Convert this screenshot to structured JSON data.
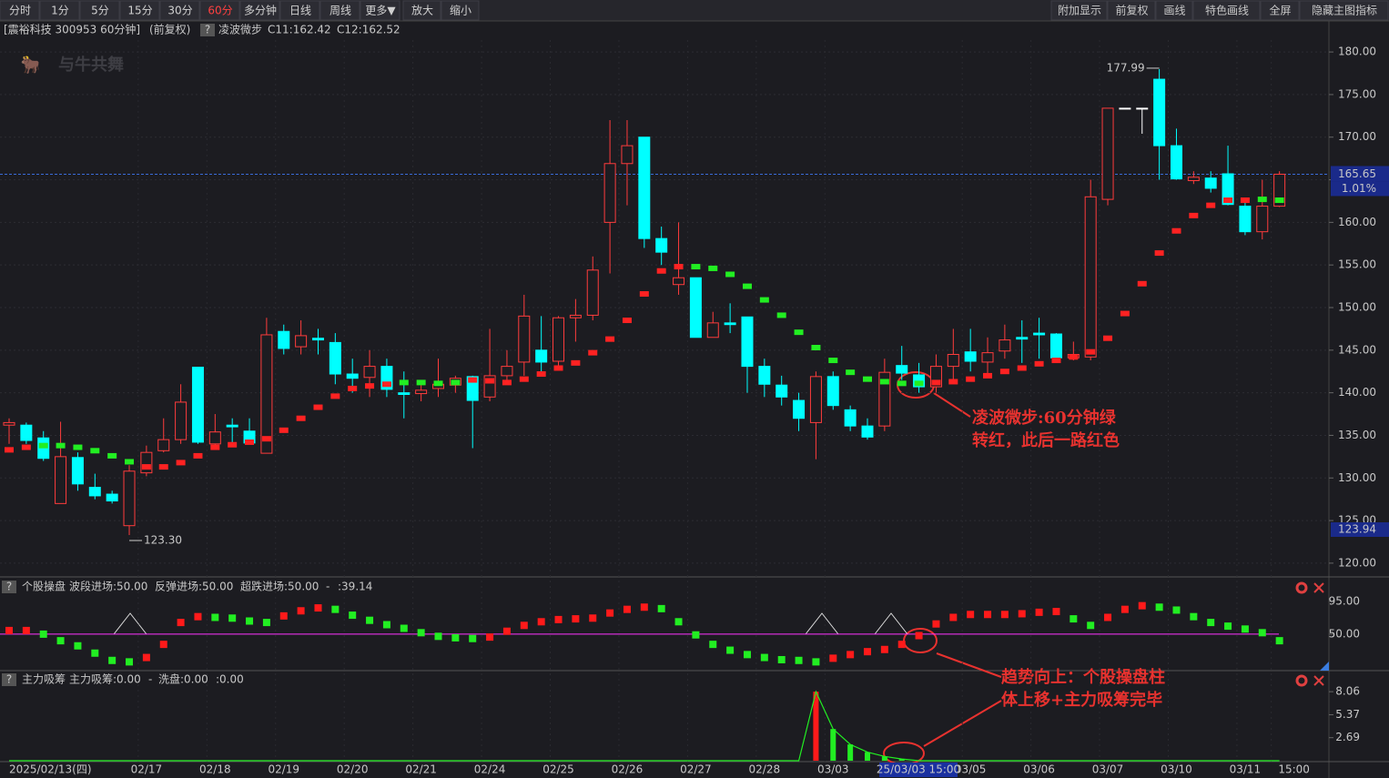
{
  "toolbar": {
    "left": [
      "分时",
      "1分",
      "5分",
      "15分",
      "30分",
      "60分",
      "多分钟",
      "日线",
      "周线",
      "更多▼",
      "放大",
      "缩小"
    ],
    "active": "60分",
    "right": [
      "附加显示",
      "前复权",
      "画线",
      "特色画线",
      "全屏",
      "隐藏主图指标"
    ]
  },
  "watermark": "与牛共舞",
  "chart_data": [
    {
      "type": "candlestick",
      "title": "[震裕科技 300953 60分钟]",
      "subtitle": "(前复权)",
      "help": "?",
      "indicator_values": [
        "C11:162.42",
        "C12:162.52"
      ],
      "categories": [
        "2025/02/13(四)",
        null,
        null,
        null,
        null,
        null,
        null,
        null,
        "02/17",
        null,
        null,
        null,
        "02/18",
        null,
        null,
        null,
        "02/19",
        null,
        null,
        null,
        "02/20",
        null,
        null,
        null,
        "02/21",
        null,
        null,
        null,
        "02/24",
        null,
        null,
        null,
        "02/25",
        null,
        null,
        null,
        "02/26",
        null,
        null,
        null,
        "02/27",
        null,
        null,
        null,
        "02/28",
        null,
        null,
        null,
        "03/03",
        null,
        null,
        null,
        null,
        null,
        null,
        null,
        "03/05",
        null,
        null,
        null,
        "03/06",
        null,
        null,
        null,
        "03/07",
        null,
        null,
        null,
        "03/10",
        null,
        null,
        null,
        "03/11",
        null,
        "15:00"
      ],
      "cursor_label": "25/03/03 15:00",
      "open": [
        136.2,
        136.2,
        134.7,
        127,
        132.4,
        128.9,
        128.1,
        124.4,
        130.6,
        133.2,
        134.5,
        143,
        134,
        136.2,
        135.5,
        132.9,
        147.2,
        145.4,
        146.4,
        145.9,
        142.2,
        141.8,
        143.1,
        140,
        139.9,
        140.5,
        140.9,
        141.9,
        139.5,
        142,
        143.6,
        145,
        143.7,
        148.8,
        149.1,
        160,
        166.9,
        170,
        158.1,
        152.7,
        153.5,
        146.5,
        148.2,
        148.9,
        143.1,
        140.9,
        139.1,
        136.5,
        141.9,
        138,
        136.1,
        136.1,
        143.2,
        142.1,
        140.7,
        143.1,
        144.8,
        143.6,
        144.9,
        146.5,
        147,
        146.9,
        144.1,
        144.2,
        162.7,
        173.4,
        173.4,
        176.8,
        169,
        164.9,
        165.2,
        165.7,
        161.9,
        158.9,
        161.9
      ],
      "high": [
        137,
        136.5,
        135.5,
        136.6,
        133,
        130.5,
        128.5,
        131.5,
        133.8,
        137,
        141,
        143,
        137.5,
        137,
        137,
        148.8,
        148,
        148.5,
        147.5,
        147,
        144,
        145,
        144,
        142.5,
        141.5,
        144,
        142,
        142,
        147.5,
        145,
        151.5,
        149,
        149,
        151,
        156,
        172,
        172,
        170,
        159.5,
        160,
        153.5,
        149.5,
        150.5,
        148.9,
        144,
        142,
        140,
        142.5,
        142.5,
        138.5,
        137,
        144,
        145.5,
        143.5,
        144.5,
        147.5,
        147.5,
        146.5,
        148,
        148.5,
        148.8,
        147,
        146,
        165,
        173.4,
        173.4,
        173.4,
        177.99,
        171,
        166,
        166,
        169,
        162.5,
        165,
        166
      ],
      "low": [
        134,
        134,
        132,
        127,
        128.5,
        127.5,
        127,
        123.3,
        130.2,
        133,
        134,
        134,
        133.5,
        134,
        134,
        132.9,
        144.5,
        144.5,
        144.5,
        141,
        140,
        139.5,
        139.5,
        137,
        139,
        139.5,
        140,
        133.5,
        139,
        141,
        142,
        142.5,
        143,
        146,
        148.5,
        154,
        162,
        157,
        155,
        151.5,
        146.5,
        146.5,
        147,
        140,
        139.5,
        138.5,
        135.5,
        132.2,
        138,
        135.5,
        134.5,
        135.5,
        141.5,
        140,
        140,
        141.5,
        142.5,
        142,
        144,
        143.5,
        144,
        143.5,
        143.8,
        143.8,
        162,
        173.4,
        170.4,
        165,
        165,
        164.5,
        163.5,
        162,
        158.5,
        158,
        161.8
      ],
      "close": [
        136.5,
        134.4,
        132.3,
        132.5,
        129.3,
        127.9,
        127.3,
        130.8,
        133,
        134.5,
        138.9,
        134.2,
        135.4,
        136,
        134.1,
        146.8,
        145.2,
        146.7,
        146.2,
        142.2,
        141.7,
        143.1,
        140.4,
        139.8,
        140.3,
        141,
        141.7,
        139.1,
        142,
        143.1,
        149,
        143.6,
        148.8,
        149.1,
        154.4,
        166.9,
        169,
        158.1,
        156.5,
        153.5,
        146.5,
        148.2,
        148,
        143.1,
        141,
        139.5,
        137,
        141.9,
        138.5,
        136.1,
        134.8,
        142.4,
        142.3,
        140.7,
        143.1,
        144.5,
        143.7,
        144.7,
        146.2,
        146.3,
        146.8,
        144.1,
        144.5,
        163,
        173.4,
        173.4,
        173.4,
        169,
        165.1,
        165.3,
        164,
        162.1,
        158.9,
        161.9,
        165.65
      ],
      "series": [
        {
          "name": "凌波微步",
          "values": [
            133.3,
            133.6,
            133.8,
            133.8,
            133.6,
            133.2,
            132.6,
            131.9,
            131.3,
            131.3,
            131.8,
            132.6,
            133.6,
            133.9,
            134.2,
            134.6,
            135.6,
            137,
            138.3,
            139.6,
            140.5,
            140.8,
            141,
            141.2,
            141.2,
            141.1,
            141.2,
            141.5,
            141.4,
            141.2,
            141.6,
            142.2,
            142.9,
            143.5,
            144.7,
            146.3,
            148.5,
            151.6,
            154.3,
            154.8,
            154.8,
            154.6,
            153.9,
            152.5,
            150.9,
            149.1,
            147.1,
            145.3,
            143.8,
            142.4,
            141.6,
            141.3,
            141.1,
            141.1,
            141.2,
            141.3,
            141.6,
            142,
            142.5,
            142.9,
            143.4,
            143.8,
            144.2,
            144.8,
            146.4,
            149.3,
            152.8,
            156.4,
            159,
            160.8,
            162,
            162.6,
            162.6,
            162.7,
            162.6
          ],
          "colors": [
            "#f22",
            "#f22",
            "#2e2",
            "#2e2",
            "#2e2",
            "#2e2",
            "#2e2",
            "#2e2",
            "#f22",
            "#f22",
            "#f22",
            "#f22",
            "#f22",
            "#f22",
            "#f22",
            "#f22",
            "#f22",
            "#f22",
            "#f22",
            "#f22",
            "#f22",
            "#f22",
            "#f22",
            "#2e2",
            "#2e2",
            "#2e2",
            "#2e2",
            "#f22",
            "#f22",
            "#f22",
            "#f22",
            "#f22",
            "#f22",
            "#f22",
            "#f22",
            "#f22",
            "#f22",
            "#f22",
            "#f22",
            "#f22",
            "#2e2",
            "#2e2",
            "#2e2",
            "#2e2",
            "#2e2",
            "#2e2",
            "#2e2",
            "#2e2",
            "#2e2",
            "#2e2",
            "#2e2",
            "#2e2",
            "#2e2",
            "#2e2",
            "#f22",
            "#f22",
            "#f22",
            "#f22",
            "#f22",
            "#f22",
            "#f22",
            "#f22",
            "#f22",
            "#f22",
            "#f22",
            "#f22",
            "#f22",
            "#f22",
            "#f22",
            "#f22",
            "#f22",
            "#f22",
            "#f22",
            "#2e2",
            "#2e2"
          ]
        }
      ],
      "up_color": "#ff3c3c",
      "down_color": "#00ffff",
      "max_label": "177.99",
      "min_label": "123.30",
      "last_price": {
        "value": 165.65,
        "label": "165.65"
      },
      "change_label": "1.01%",
      "axis_marker": {
        "value": 123.94,
        "label": "123.94"
      },
      "ylim": [
        118.6,
        181.4
      ],
      "yticks": [
        {
          "value": 120,
          "label": "120.00"
        },
        {
          "value": 125,
          "label": "125.00"
        },
        {
          "value": 130,
          "label": "130.00"
        },
        {
          "value": 135,
          "label": "135.00"
        },
        {
          "value": 140,
          "label": "140.00"
        },
        {
          "value": 145,
          "label": "145.00"
        },
        {
          "value": 150,
          "label": "150.00"
        },
        {
          "value": 155,
          "label": "155.00"
        },
        {
          "value": 160,
          "label": "160.00"
        },
        {
          "value": 165,
          "label": "165.00"
        },
        {
          "value": 170,
          "label": "170.00"
        },
        {
          "value": 175,
          "label": "175.00"
        },
        {
          "value": 180,
          "label": "180.00"
        }
      ],
      "annotations": [
        "凌波微步:60分钟绿",
        "转红，此后一路红色"
      ]
    },
    {
      "type": "bar",
      "title": "个股操盘",
      "help": "?",
      "legend": [
        {
          "label": "波段进场:50.00",
          "value": 50,
          "color": "#ffffff"
        },
        {
          "label": "反弹进场:50.00",
          "value": 50,
          "color": "#ffff33"
        },
        {
          "label": "超跌进场:50.00",
          "value": 50,
          "color": "#ff33ff"
        }
      ],
      "extra_labels": [
        "-",
        ":39.14"
      ],
      "values": [
        55,
        55,
        50,
        41,
        34,
        24,
        14,
        12,
        18,
        36,
        66,
        74,
        73,
        72,
        68,
        66,
        75,
        82,
        86,
        84,
        76,
        69,
        63,
        58,
        52,
        47,
        45,
        44,
        46,
        54,
        62,
        67,
        70,
        71,
        72,
        79,
        84,
        87,
        85,
        67,
        49,
        36,
        28,
        22,
        18,
        15,
        14,
        12,
        17,
        22,
        26,
        29,
        36,
        48,
        64,
        73,
        77,
        77,
        77,
        78,
        80,
        81,
        71,
        62,
        73,
        84,
        89,
        87,
        83,
        74,
        66,
        61,
        57,
        52,
        41
      ],
      "ylim": [
        1.25,
        126
      ],
      "yticks": [
        {
          "value": 95,
          "label": "95.00"
        },
        {
          "value": 50,
          "label": "50.00"
        }
      ],
      "annotations": [
        "趋势向上：个股操盘柱",
        "体上移+主力吸筹完毕"
      ]
    },
    {
      "type": "bar",
      "title": "主力吸筹",
      "help": "?",
      "legend": [
        {
          "label": "主力吸筹:0.00",
          "color": "#ff3030"
        },
        {
          "label": "-",
          "color": "#ff3030"
        },
        {
          "label": "洗盘:0.00",
          "color": "#33ff33"
        },
        {
          "label": ":0.00",
          "color": "#33ff33"
        }
      ],
      "values": [
        0,
        0,
        0,
        0,
        0,
        0,
        0,
        0,
        0,
        0,
        0,
        0,
        0,
        0,
        0,
        0,
        0,
        0,
        0,
        0,
        0,
        0,
        0,
        0,
        0,
        0,
        0,
        0,
        0,
        0,
        0,
        0,
        0,
        0,
        0,
        0,
        0,
        0,
        0,
        0,
        0,
        0,
        0,
        0,
        0,
        0,
        0,
        8.06,
        3.7,
        1.9,
        1.0,
        0.5,
        0.2,
        0,
        0,
        0,
        0,
        0,
        0,
        0,
        0,
        0,
        0,
        0,
        0,
        0,
        0,
        0,
        0,
        0,
        0,
        0,
        0,
        0,
        0
      ],
      "ylim": [
        0,
        10.2
      ],
      "yticks": [
        {
          "value": 8.06,
          "label": "8.06"
        },
        {
          "value": 5.37,
          "label": "5.37"
        },
        {
          "value": 2.69,
          "label": "2.69"
        }
      ]
    }
  ]
}
